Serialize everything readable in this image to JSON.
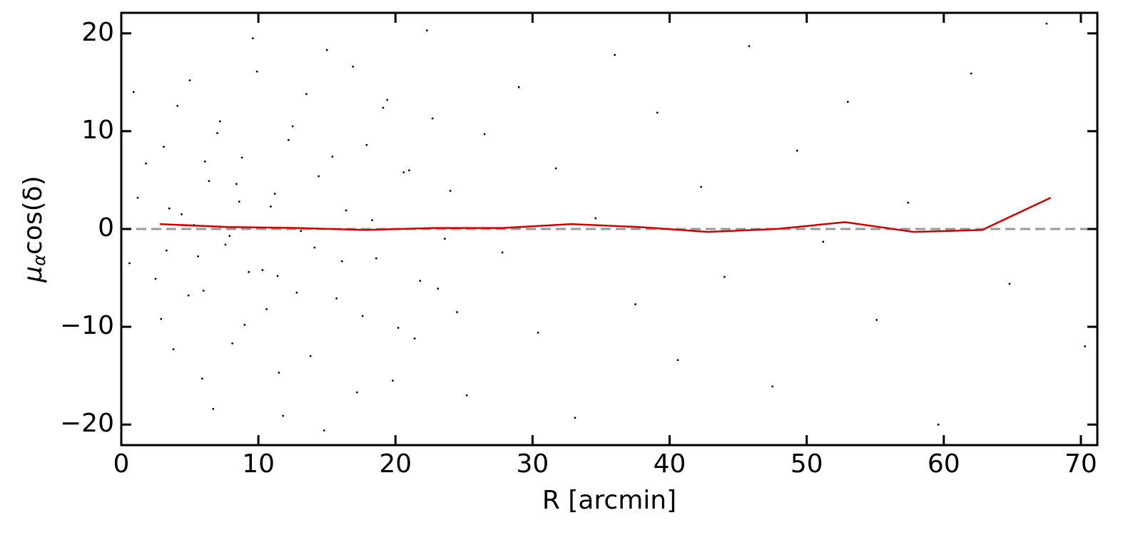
{
  "chart_data": {
    "type": "scatter",
    "xlabel": "R [arcmin]",
    "ylabel": [
      "μ",
      "α",
      "cos(δ)"
    ],
    "xlim": [
      0,
      71.2
    ],
    "ylim": [
      -22.1,
      22.1
    ],
    "xticks": [
      0,
      10,
      20,
      30,
      40,
      50,
      60,
      70
    ],
    "yticks": [
      {
        "value": -20,
        "label": "−20"
      },
      {
        "value": -10,
        "label": "−10"
      },
      0,
      10,
      20
    ],
    "hline": {
      "value": 0,
      "color": "#999999",
      "style": "dashed"
    },
    "series": [
      {
        "type": "scatter",
        "color": "#000000",
        "x": [
          1.2,
          2.5,
          3.1,
          3.8,
          4.4,
          5.0,
          5.6,
          6.1,
          6.7,
          7.2,
          7.9,
          8.4,
          9.0,
          9.6,
          10.3,
          10.9,
          11.5,
          12.2,
          12.8,
          13.5,
          14.1,
          14.8,
          15.4,
          16.1,
          16.9,
          17.6,
          18.3,
          19.1,
          19.8,
          20.6,
          21.4,
          22.3,
          23.1,
          24.0,
          25.2,
          26.5,
          27.8,
          29.0,
          30.4,
          31.7,
          33.1,
          34.6,
          36.0,
          37.5,
          39.1,
          40.6,
          42.3,
          44.0,
          45.8,
          47.5,
          49.3,
          51.2,
          53.0,
          55.1,
          57.4,
          59.6,
          62.0,
          64.8,
          67.5,
          70.3,
          0.6,
          1.8,
          2.9,
          3.5,
          4.1,
          4.9,
          5.3,
          5.9,
          6.4,
          7.0,
          7.6,
          8.1,
          8.8,
          9.3,
          9.9,
          10.6,
          11.2,
          11.8,
          12.5,
          13.1,
          13.8,
          14.4,
          15.0,
          15.7,
          16.4,
          17.2,
          17.9,
          18.6,
          19.4,
          20.2,
          21.0,
          21.8,
          22.7,
          23.6,
          24.5,
          0.9,
          3.3,
          6.0,
          8.6,
          11.4
        ],
        "values": [
          3.2,
          -5.1,
          8.4,
          -12.3,
          1.5,
          15.2,
          -2.8,
          6.9,
          -18.4,
          11.0,
          -0.7,
          4.6,
          -9.8,
          19.5,
          -4.2,
          2.3,
          -14.7,
          9.1,
          -6.5,
          13.8,
          -1.9,
          -20.6,
          7.4,
          -3.3,
          16.6,
          -8.9,
          0.9,
          12.4,
          -15.5,
          5.8,
          -11.2,
          20.3,
          -6.1,
          3.9,
          -17.0,
          9.7,
          -2.4,
          14.5,
          -10.6,
          6.2,
          -19.3,
          1.1,
          17.8,
          -7.7,
          11.9,
          -13.4,
          4.3,
          -4.9,
          18.7,
          -16.1,
          8.0,
          -1.3,
          13.0,
          -9.3,
          2.7,
          -20.0,
          15.9,
          -5.6,
          21.0,
          -12.0,
          -3.5,
          6.7,
          -9.2,
          2.1,
          12.6,
          -6.8,
          0.4,
          -15.3,
          4.9,
          9.8,
          -1.6,
          -11.7,
          7.3,
          -4.4,
          16.1,
          -8.2,
          3.6,
          -19.1,
          10.5,
          -0.2,
          -13.0,
          5.4,
          18.3,
          -7.1,
          1.9,
          -16.7,
          8.6,
          -3.0,
          13.2,
          -10.1,
          6.0,
          -5.3,
          11.3,
          -1.0,
          -8.5,
          14.0,
          -2.2,
          -6.3,
          2.8,
          -4.8
        ]
      },
      {
        "type": "line",
        "color": "#d40000",
        "x": [
          2.8,
          7.8,
          12.8,
          17.8,
          22.8,
          27.8,
          32.8,
          37.8,
          42.8,
          47.8,
          52.8,
          57.8,
          62.8,
          67.8
        ],
        "values": [
          0.5,
          0.2,
          0.1,
          -0.1,
          0.1,
          0.1,
          0.5,
          0.2,
          -0.3,
          0.0,
          0.7,
          -0.3,
          -0.1,
          3.2
        ]
      }
    ]
  }
}
